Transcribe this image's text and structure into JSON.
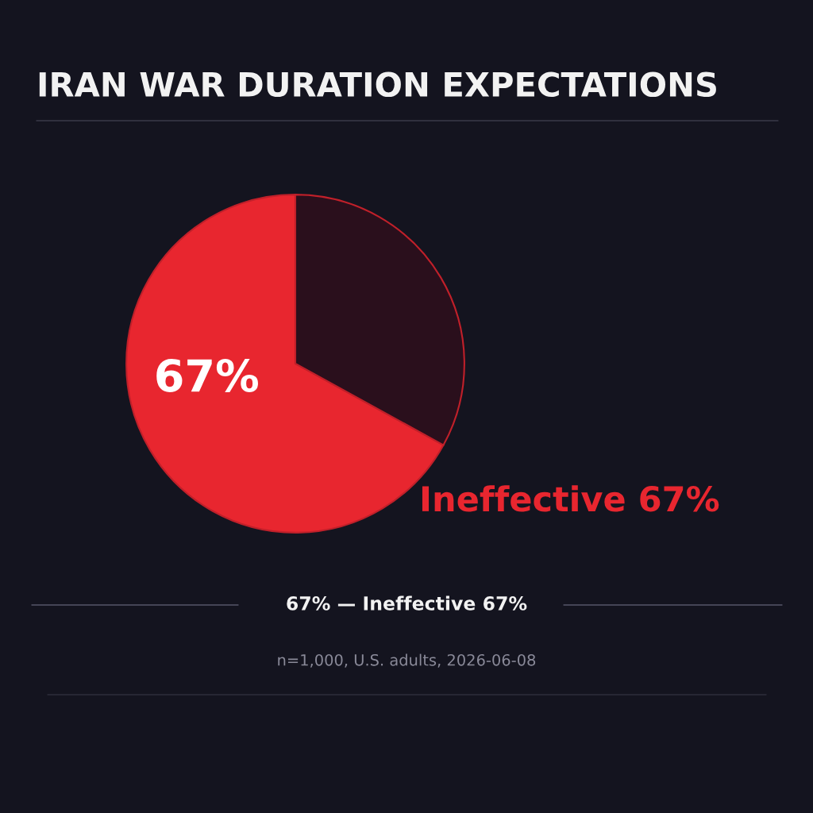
{
  "chart_data": {
    "type": "pie",
    "title": "IRAN WAR DURATION EXPECTATIONS",
    "categories": [
      "Ineffective",
      null
    ],
    "values": [
      67,
      33
    ],
    "colors": [
      "#e8262f",
      "#2a0f1c"
    ],
    "value_labels": [
      "67%",
      null
    ],
    "annotations": [
      "67% — Ineffective 67%",
      "n=1,000, U.S. adults, 2026-06-08"
    ]
  }
}
